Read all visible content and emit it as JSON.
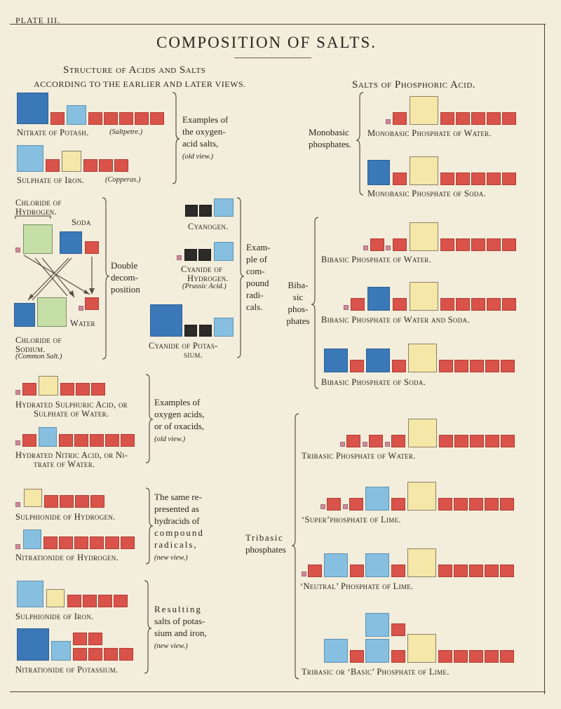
{
  "plate": "PLATE III.",
  "title": "COMPOSITION OF SALTS.",
  "left_heading": "Structure of Acids and Salts",
  "left_subheading": "ACCORDING TO THE EARLIER AND LATER VIEWS.",
  "right_heading": "Salts of Phosphoric Acid.",
  "labels": {
    "nitrate_potash": "Nitrate of Potash.",
    "saltpetre": "(Saltpetre.)",
    "sulphate_iron": "Sulphate of Iron.",
    "copperas": "(Copperas.)",
    "chloride_hydrogen_1": "Chloride of",
    "chloride_hydrogen_2": "Hydrogen.",
    "soda": "Soda",
    "water": "Water",
    "chloride_sodium_1": "Chloride of",
    "chloride_sodium_2": "Sodium.",
    "common_salt": "(Common Salt.)",
    "cyanogen": "Cyanogen.",
    "cyanide_hydrogen_1": "Cyanide of",
    "cyanide_hydrogen_2": "Hydrogen.",
    "prussic_acid": "(Prussic Acid.)",
    "cyanide_potassium_1": "Cyanide of Potas-",
    "cyanide_potassium_2": "sium.",
    "hydrated_sulphuric_1": "Hydrated Sulphuric Acid, or",
    "hydrated_sulphuric_2": "Sulphate of Water.",
    "hydrated_nitric_1": "Hydrated Nitric Acid, or Ni-",
    "hydrated_nitric_2": "trate of Water.",
    "sulphionide_hydrogen": "Sulphionide of Hydrogen.",
    "nitrationide_hydrogen": "Nitrationide of Hydrogen.",
    "sulphionide_iron": "Sulphionide of Iron.",
    "nitrationide_potassium": "Nitrationide of Potassium.",
    "mono_water": "Monobasic Phosphate of Water.",
    "mono_soda": "Monobasic Phosphate of Soda.",
    "bi_water": "Bibasic Phosphate of Water.",
    "bi_water_soda": "Bibasic Phosphate of Water and Soda.",
    "bi_soda": "Bibasic Phosphate of Soda.",
    "tri_water": "Tribasic Phosphate of Water.",
    "super_lime": "‘Super’phosphate of Lime.",
    "neutral_lime": "‘Neutral’ Phosphate of Lime.",
    "basic_lime": "Tribasic or ‘Basic’ Phosphate of Lime."
  },
  "notes": {
    "oxygen_salts": [
      "Examples of",
      "the oxygen-",
      "acid salts,"
    ],
    "oxygen_salts_sub": "(old view.)",
    "double_decomp": [
      "Double",
      "decom-",
      "position"
    ],
    "compound_radicals": [
      "Exam-",
      "ple of",
      "com-",
      "pound",
      "radi-",
      "cals."
    ],
    "oxygen_acids": [
      "Examples of",
      "oxygen acids,",
      "or of oxacids,"
    ],
    "oxygen_acids_sub": "(old view.)",
    "hydracids": [
      "The same re-",
      "presented as",
      "hydracids of",
      "compound",
      "radicals,"
    ],
    "hydracids_sub": "(new view.)",
    "resulting": [
      "Resulting",
      "salts of potas-",
      "sium and iron,"
    ],
    "resulting_sub": "(new view.)",
    "monobasic": [
      "Monobasic",
      "phosphates."
    ],
    "bibasic": [
      "Biba-",
      "sic",
      "phos-",
      "phates"
    ],
    "tribasic": [
      "Tribasic",
      "phosphates"
    ]
  },
  "colors": {
    "paper": "#f3eddb",
    "red": "#d9534a",
    "dark_blue": "#3a78b8",
    "light_blue": "#86bfe0",
    "yellow": "#f4e7a8",
    "green": "#c5dfa6",
    "black": "#2d2a2a",
    "pink": "#cf8a9b"
  }
}
